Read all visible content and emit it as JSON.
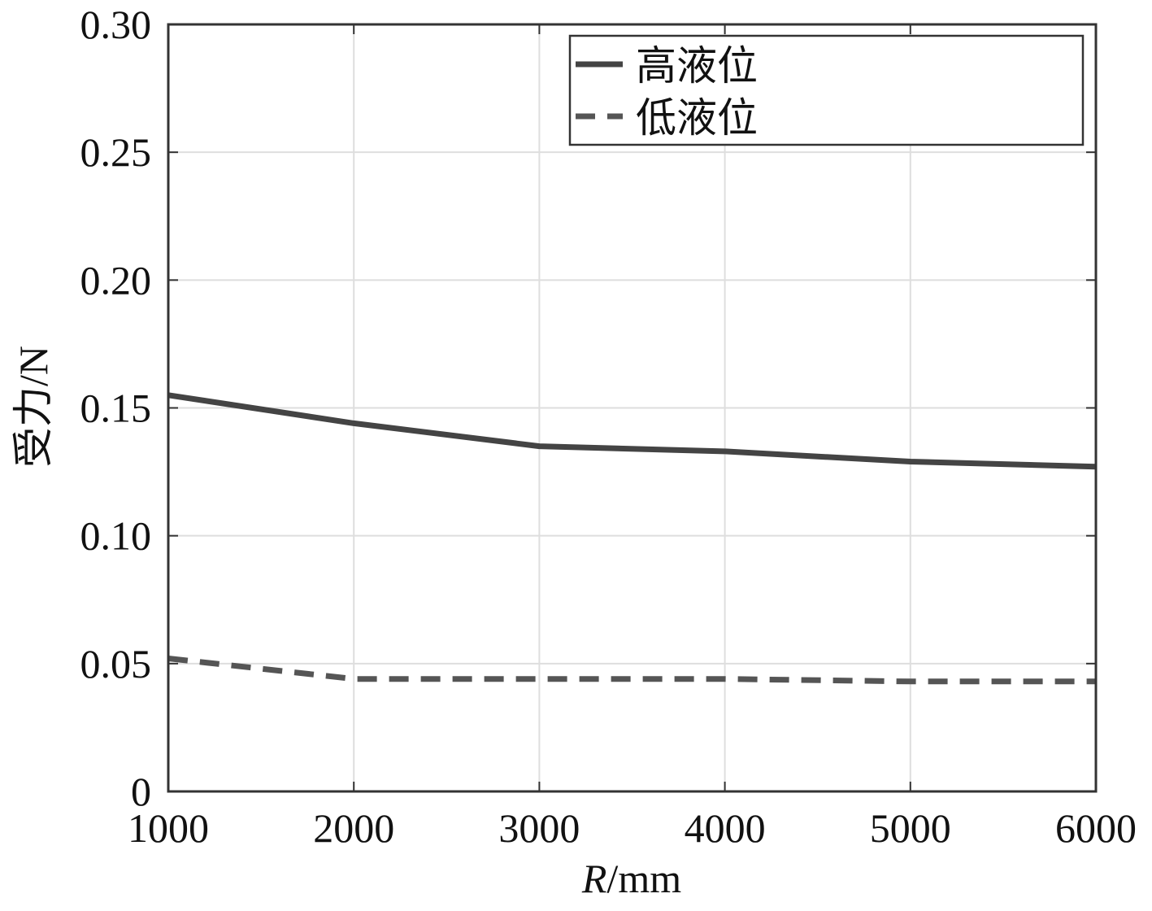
{
  "chart_data": {
    "type": "line",
    "xlabel": {
      "italic_part": "R",
      "rest": "/mm"
    },
    "ylabel": "受力/N",
    "xlim": [
      1000,
      6000
    ],
    "ylim": [
      0,
      0.3
    ],
    "xticks": [
      1000,
      2000,
      3000,
      4000,
      5000,
      6000
    ],
    "xtick_labels": [
      "1000",
      "2000",
      "3000",
      "4000",
      "5000",
      "6000"
    ],
    "yticks": [
      0,
      0.05,
      0.1,
      0.15,
      0.2,
      0.25,
      0.3
    ],
    "ytick_labels": [
      "0",
      "0.05",
      "0.10",
      "0.15",
      "0.20",
      "0.25",
      "0.30"
    ],
    "grid": true,
    "legend_position": "top-right",
    "series": [
      {
        "name": "高液位",
        "style": "solid",
        "color": "#444444",
        "x": [
          1000,
          2000,
          3000,
          4000,
          5000,
          6000
        ],
        "y": [
          0.155,
          0.144,
          0.135,
          0.133,
          0.129,
          0.127
        ]
      },
      {
        "name": "低液位",
        "style": "dashed",
        "color": "#555555",
        "x": [
          1000,
          2000,
          3000,
          4000,
          5000,
          6000
        ],
        "y": [
          0.052,
          0.044,
          0.044,
          0.044,
          0.043,
          0.043
        ]
      }
    ]
  }
}
